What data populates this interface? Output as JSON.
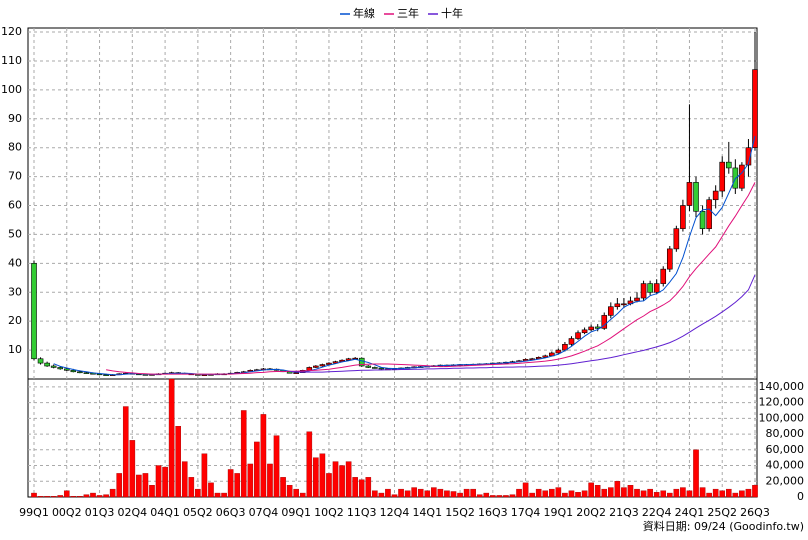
{
  "chart_data": [
    {
      "type": "candlestick",
      "categories": [
        "99Q1",
        null,
        null,
        null,
        null,
        "00Q2",
        null,
        null,
        null,
        null,
        "01Q3",
        null,
        null,
        null,
        null,
        "02Q4",
        null,
        null,
        null,
        null,
        "04Q1",
        null,
        null,
        null,
        null,
        "05Q2",
        null,
        null,
        null,
        null,
        "06Q3",
        null,
        null,
        null,
        null,
        "07Q4",
        null,
        null,
        null,
        null,
        "09Q1",
        null,
        null,
        null,
        null,
        "10Q2",
        null,
        null,
        null,
        null,
        "11Q3",
        null,
        null,
        null,
        null,
        "12Q4",
        null,
        null,
        null,
        null,
        "14Q1",
        null,
        null,
        null,
        null,
        "15Q2",
        null,
        null,
        null,
        null,
        "16Q3",
        null,
        null,
        null,
        null,
        "17Q4",
        null,
        null,
        null,
        null,
        "19Q1",
        null,
        null,
        null,
        null,
        "20Q2",
        null,
        null,
        null,
        null,
        "21Q3",
        null,
        null,
        null,
        null,
        "22Q4",
        null,
        null,
        null,
        null,
        "24Q1",
        null,
        null,
        null,
        null,
        "25Q2",
        null,
        null,
        null,
        null,
        "26Q3"
      ],
      "open": [
        40,
        7,
        5.5,
        4.5,
        4,
        3.5,
        3,
        2.5,
        2.2,
        2,
        1.8,
        1.5,
        1.3,
        1.5,
        1.8,
        2,
        1.8,
        1.6,
        1.5,
        1.6,
        1.8,
        2,
        2.2,
        2,
        1.8,
        1.6,
        1.5,
        1.5,
        1.6,
        1.8,
        1.7,
        2,
        2.3,
        2.5,
        3,
        3.2,
        3.5,
        3.4,
        3,
        2.5,
        2,
        2.2,
        3,
        4,
        4.5,
        5,
        5.5,
        6,
        6.5,
        7,
        7.2,
        4.5,
        4,
        3.8,
        3.5,
        3.5,
        3.7,
        3.8,
        4,
        4.2,
        4.3,
        4.5,
        4.6,
        4.8,
        4.8,
        4.9,
        5,
        5,
        5.1,
        5.2,
        5.3,
        5.5,
        5.6,
        5.8,
        6,
        6.3,
        6.8,
        7,
        7.5,
        8,
        9,
        10,
        12,
        14,
        16,
        17,
        18,
        17.5,
        22,
        25,
        26,
        26,
        27,
        28,
        33,
        30,
        33,
        38,
        45,
        52,
        60,
        68,
        58,
        52,
        62,
        65,
        75,
        73,
        66,
        74,
        80
      ],
      "high": [
        41,
        7.5,
        6,
        5,
        4.5,
        4,
        3.5,
        3,
        2.5,
        2.3,
        2,
        1.8,
        1.7,
        2,
        2.3,
        2.2,
        2,
        1.8,
        1.8,
        2,
        2.2,
        2.5,
        2.4,
        2.2,
        2,
        1.8,
        1.7,
        1.8,
        2,
        2,
        2.2,
        2.5,
        2.8,
        3.3,
        3.5,
        3.8,
        3.8,
        3.6,
        3.2,
        2.7,
        2.5,
        3.2,
        4.3,
        4.8,
        5.3,
        5.8,
        6.3,
        6.8,
        7.3,
        7.6,
        7.5,
        4.8,
        4.3,
        4,
        3.8,
        3.9,
        4,
        4.2,
        4.4,
        4.5,
        4.7,
        4.8,
        5,
        5,
        5.1,
        5.2,
        5.2,
        5.3,
        5.4,
        5.5,
        5.7,
        5.8,
        6,
        6.3,
        6.6,
        7.1,
        7.3,
        7.8,
        8.4,
        9.5,
        10.5,
        12.8,
        14.8,
        16.8,
        17.8,
        18.8,
        19,
        23,
        26.5,
        28,
        28,
        28.5,
        30,
        34,
        34,
        34.5,
        39,
        46,
        53,
        62,
        95,
        70,
        60,
        63,
        67,
        77,
        82,
        76,
        75,
        83,
        120
      ],
      "low": [
        6.5,
        5,
        4.2,
        3.7,
        3.2,
        2.8,
        2.3,
        2,
        1.8,
        1.6,
        1.3,
        1.1,
        1.2,
        1.4,
        1.7,
        1.7,
        1.5,
        1.4,
        1.4,
        1.5,
        1.7,
        1.9,
        1.9,
        1.7,
        1.5,
        1.4,
        1.4,
        1.4,
        1.5,
        1.6,
        1.6,
        1.9,
        2.2,
        2.4,
        2.9,
        3.1,
        3.2,
        2.9,
        2.4,
        1.9,
        1.9,
        2.1,
        2.9,
        3.8,
        4.3,
        4.8,
        5.3,
        5.8,
        6.3,
        6.8,
        4.2,
        3.8,
        3.6,
        3.3,
        3.3,
        3.4,
        3.6,
        3.7,
        3.9,
        4.1,
        4.2,
        4.4,
        4.5,
        4.6,
        4.7,
        4.8,
        4.8,
        4.9,
        5,
        5.1,
        5.2,
        5.4,
        5.5,
        5.7,
        5.9,
        6.2,
        6.6,
        6.9,
        7.3,
        7.8,
        8.8,
        9.5,
        11.5,
        13.5,
        15.5,
        16.5,
        16.5,
        17,
        21,
        24,
        24.5,
        25.5,
        26.5,
        27,
        29,
        29.5,
        32,
        37,
        44,
        51,
        58,
        56,
        50,
        51,
        59,
        63,
        71,
        64,
        65,
        70,
        79
      ],
      "close": [
        7,
        5.5,
        4.5,
        4,
        3.5,
        3,
        2.5,
        2.2,
        2,
        1.8,
        1.5,
        1.3,
        1.5,
        1.8,
        2,
        1.8,
        1.6,
        1.5,
        1.6,
        1.8,
        2,
        2.2,
        2,
        1.8,
        1.6,
        1.5,
        1.5,
        1.6,
        1.8,
        1.7,
        2,
        2.3,
        2.5,
        3,
        3.2,
        3.5,
        3.4,
        3,
        2.5,
        2,
        2.2,
        3,
        4,
        4.5,
        5,
        5.5,
        6,
        6.5,
        7,
        7.2,
        4.5,
        4,
        3.8,
        3.5,
        3.5,
        3.7,
        3.8,
        4,
        4.2,
        4.3,
        4.5,
        4.6,
        4.8,
        4.8,
        4.9,
        5,
        5,
        5.1,
        5.2,
        5.3,
        5.5,
        5.6,
        5.8,
        6,
        6.3,
        6.8,
        7,
        7.5,
        8,
        9,
        10,
        12,
        14,
        16,
        17,
        18,
        17.5,
        22,
        25,
        26,
        26,
        27,
        28,
        33,
        30,
        33,
        38,
        45,
        52,
        60,
        68,
        58,
        52,
        62,
        65,
        75,
        73,
        66,
        74,
        80,
        107
      ],
      "up_color": "#ff0000",
      "down_color": "#33cc33",
      "lines": [
        {
          "name": "年線",
          "color": "#0050d0",
          "values": [
            null,
            null,
            null,
            5.3,
            4.4,
            3.8,
            3.3,
            2.8,
            2.5,
            2.1,
            1.9,
            1.7,
            1.5,
            1.5,
            1.7,
            1.8,
            1.8,
            1.7,
            1.6,
            1.6,
            1.8,
            1.9,
            2,
            2,
            1.9,
            1.7,
            1.6,
            1.6,
            1.6,
            1.7,
            1.8,
            2,
            2.1,
            2.5,
            2.8,
            3.1,
            3.3,
            3.3,
            3.1,
            2.7,
            2.4,
            2.4,
            2.8,
            3.4,
            4.1,
            4.8,
            5.3,
            5.9,
            6.3,
            6.8,
            6.3,
            5.7,
            4.9,
            4,
            3.7,
            3.6,
            3.6,
            3.8,
            3.9,
            4.1,
            4.3,
            4.4,
            4.6,
            4.7,
            4.8,
            4.9,
            4.9,
            5,
            5.1,
            5.2,
            5.3,
            5.4,
            5.6,
            5.7,
            5.9,
            6.2,
            6.5,
            6.9,
            7.3,
            7.9,
            8.6,
            9.8,
            11.3,
            13,
            14.8,
            16.3,
            17.1,
            18.6,
            20.6,
            22.6,
            24.8,
            26,
            26.8,
            27,
            28.8,
            29.5,
            30.8,
            33.5,
            36.5,
            42,
            49.3,
            55.8,
            58.5,
            58.8,
            56.5,
            59.3,
            64.3,
            69.3,
            71.3,
            74.5,
            84
          ]
        },
        {
          "name": "三年",
          "color": "#e0107a",
          "values": [
            null,
            null,
            null,
            null,
            null,
            null,
            null,
            null,
            null,
            null,
            null,
            3.2,
            2.8,
            2.5,
            2.3,
            2.1,
            1.9,
            1.8,
            1.7,
            1.7,
            1.7,
            1.7,
            1.7,
            1.7,
            1.7,
            1.7,
            1.7,
            1.7,
            1.7,
            1.7,
            1.7,
            1.8,
            1.9,
            2,
            2.2,
            2.3,
            2.5,
            2.6,
            2.6,
            2.7,
            2.7,
            2.8,
            2.9,
            3,
            3.2,
            3.4,
            3.7,
            4,
            4.4,
            4.8,
            5,
            5.1,
            5.2,
            5.2,
            5.2,
            5.1,
            5,
            4.9,
            4.8,
            4.7,
            4.6,
            4.4,
            4.3,
            4.3,
            4.4,
            4.5,
            4.6,
            4.7,
            4.8,
            4.9,
            5,
            5.1,
            5.2,
            5.3,
            5.4,
            5.6,
            5.8,
            6,
            6.2,
            6.5,
            6.9,
            7.4,
            8,
            8.8,
            9.6,
            10.6,
            11.5,
            12.8,
            14.2,
            15.8,
            17.4,
            19,
            20.5,
            21.8,
            23.3,
            24.4,
            25.6,
            27,
            29.3,
            32,
            35.4,
            38.2,
            40.7,
            43.2,
            45.7,
            49.3,
            53,
            56.3,
            60,
            63.5,
            68
          ]
        },
        {
          "name": "十年",
          "color": "#6020d0",
          "values": [
            null,
            null,
            null,
            null,
            null,
            null,
            null,
            null,
            null,
            null,
            null,
            null,
            null,
            null,
            null,
            null,
            null,
            null,
            null,
            null,
            null,
            null,
            null,
            null,
            null,
            null,
            null,
            null,
            null,
            null,
            null,
            null,
            null,
            null,
            null,
            null,
            null,
            null,
            null,
            2.6,
            2.5,
            2.4,
            2.4,
            2.4,
            2.4,
            2.5,
            2.6,
            2.7,
            2.8,
            2.9,
            3,
            3,
            3.1,
            3.1,
            3.2,
            3.2,
            3.3,
            3.3,
            3.4,
            3.4,
            3.5,
            3.5,
            3.6,
            3.6,
            3.7,
            3.7,
            3.8,
            3.8,
            3.9,
            3.9,
            4,
            4,
            4.1,
            4.1,
            4.2,
            4.2,
            4.3,
            4.4,
            4.5,
            4.6,
            4.8,
            5,
            5.3,
            5.6,
            6,
            6.3,
            6.6,
            7,
            7.4,
            7.9,
            8.4,
            8.9,
            9.4,
            9.9,
            10.5,
            11.1,
            11.8,
            12.6,
            13.6,
            14.8,
            16.2,
            17.6,
            19,
            20.3,
            21.7,
            23.2,
            24.8,
            26.5,
            28.5,
            30.8,
            36
          ]
        }
      ],
      "ylim": [
        0,
        121.4
      ],
      "yticks": [
        10,
        20,
        30,
        40,
        50,
        60,
        70,
        80,
        90,
        100,
        110,
        120
      ],
      "grid": true
    },
    {
      "type": "bar",
      "color": "#ff0000",
      "values": [
        5000,
        1000,
        1000,
        1000,
        2000,
        8000,
        1000,
        1000,
        3000,
        5000,
        2000,
        3000,
        10000,
        30000,
        115000,
        72000,
        28000,
        30000,
        15000,
        40000,
        38000,
        150000,
        90000,
        45000,
        25000,
        10000,
        55000,
        18000,
        5000,
        5000,
        35000,
        30000,
        110000,
        42000,
        70000,
        105000,
        42000,
        78000,
        25000,
        15000,
        10000,
        5000,
        83000,
        50000,
        55000,
        30000,
        45000,
        40000,
        45000,
        25000,
        22000,
        25000,
        8000,
        5000,
        10000,
        3000,
        10000,
        8000,
        12000,
        10000,
        8000,
        12000,
        10000,
        8000,
        7000,
        5000,
        10000,
        10000,
        3000,
        5000,
        2000,
        2000,
        2000,
        3000,
        10000,
        18000,
        5000,
        10000,
        8000,
        10000,
        12000,
        5000,
        8000,
        6000,
        8000,
        18000,
        15000,
        10000,
        12000,
        20000,
        12000,
        15000,
        10000,
        8000,
        10000,
        6000,
        8000,
        5000,
        10000,
        12000,
        8000,
        60000,
        12000,
        5000,
        10000,
        8000,
        10000,
        5000,
        8000,
        10000,
        15000
      ],
      "ylim": [
        0,
        150000
      ],
      "yticks": [
        0,
        {
          "value": 20000,
          "label": "20,000"
        },
        {
          "value": 40000,
          "label": "40,000"
        },
        {
          "value": 60000,
          "label": "60,000"
        },
        {
          "value": 80000,
          "label": "80,000"
        },
        {
          "value": 100000,
          "label": "100,000"
        },
        {
          "value": 120000,
          "label": "120,000"
        },
        {
          "value": 140000,
          "label": "140,000"
        }
      ],
      "grid": true
    }
  ],
  "footer": "資料日期: 09/24  (Goodinfo.tw)"
}
